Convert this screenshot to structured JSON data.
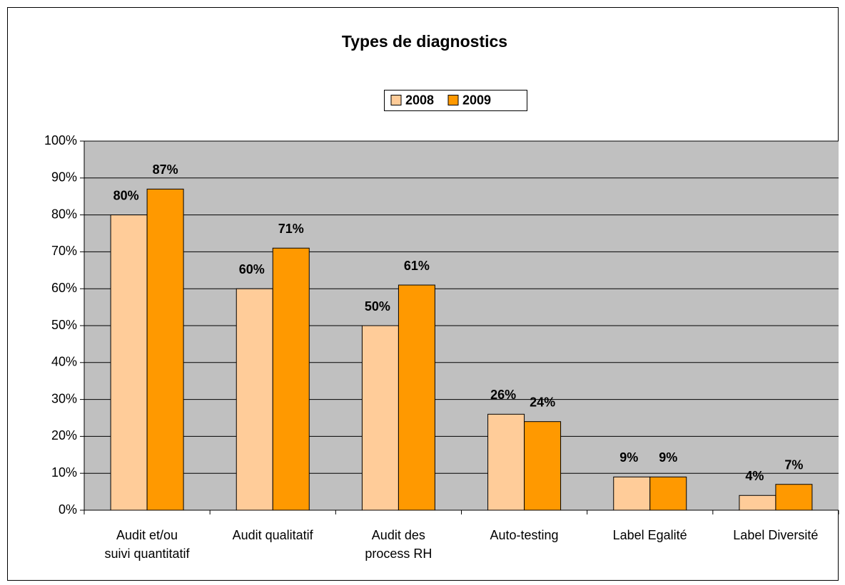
{
  "chart_data": {
    "type": "bar",
    "title": "Types de diagnostics",
    "categories": [
      "Audit et/ou\nsuivi quantitatif",
      "Audit qualitatif",
      "Audit des\nprocess RH",
      "Auto-testing",
      "Label Egalité",
      "Label Diversité"
    ],
    "series": [
      {
        "name": "2008",
        "color": "#ffcc99",
        "values": [
          80,
          60,
          50,
          26,
          9,
          4
        ],
        "value_labels": [
          "80%",
          "60%",
          "50%",
          "26%",
          "9%",
          "4%"
        ]
      },
      {
        "name": "2009",
        "color": "#ff9900",
        "values": [
          87,
          71,
          61,
          24,
          9,
          7
        ],
        "value_labels": [
          "87%",
          "71%",
          "61%",
          "24%",
          "9%",
          "7%"
        ]
      }
    ],
    "ylim": [
      0,
      100
    ],
    "yticks": [
      {
        "value": 0,
        "label": "0%"
      },
      {
        "value": 10,
        "label": "10%"
      },
      {
        "value": 20,
        "label": "20%"
      },
      {
        "value": 30,
        "label": "30%"
      },
      {
        "value": 40,
        "label": "40%"
      },
      {
        "value": 50,
        "label": "50%"
      },
      {
        "value": 60,
        "label": "60%"
      },
      {
        "value": 70,
        "label": "70%"
      },
      {
        "value": 80,
        "label": "80%"
      },
      {
        "value": 90,
        "label": "90%"
      },
      {
        "value": 100,
        "label": "100%"
      }
    ],
    "grid": true,
    "legend": "top"
  }
}
